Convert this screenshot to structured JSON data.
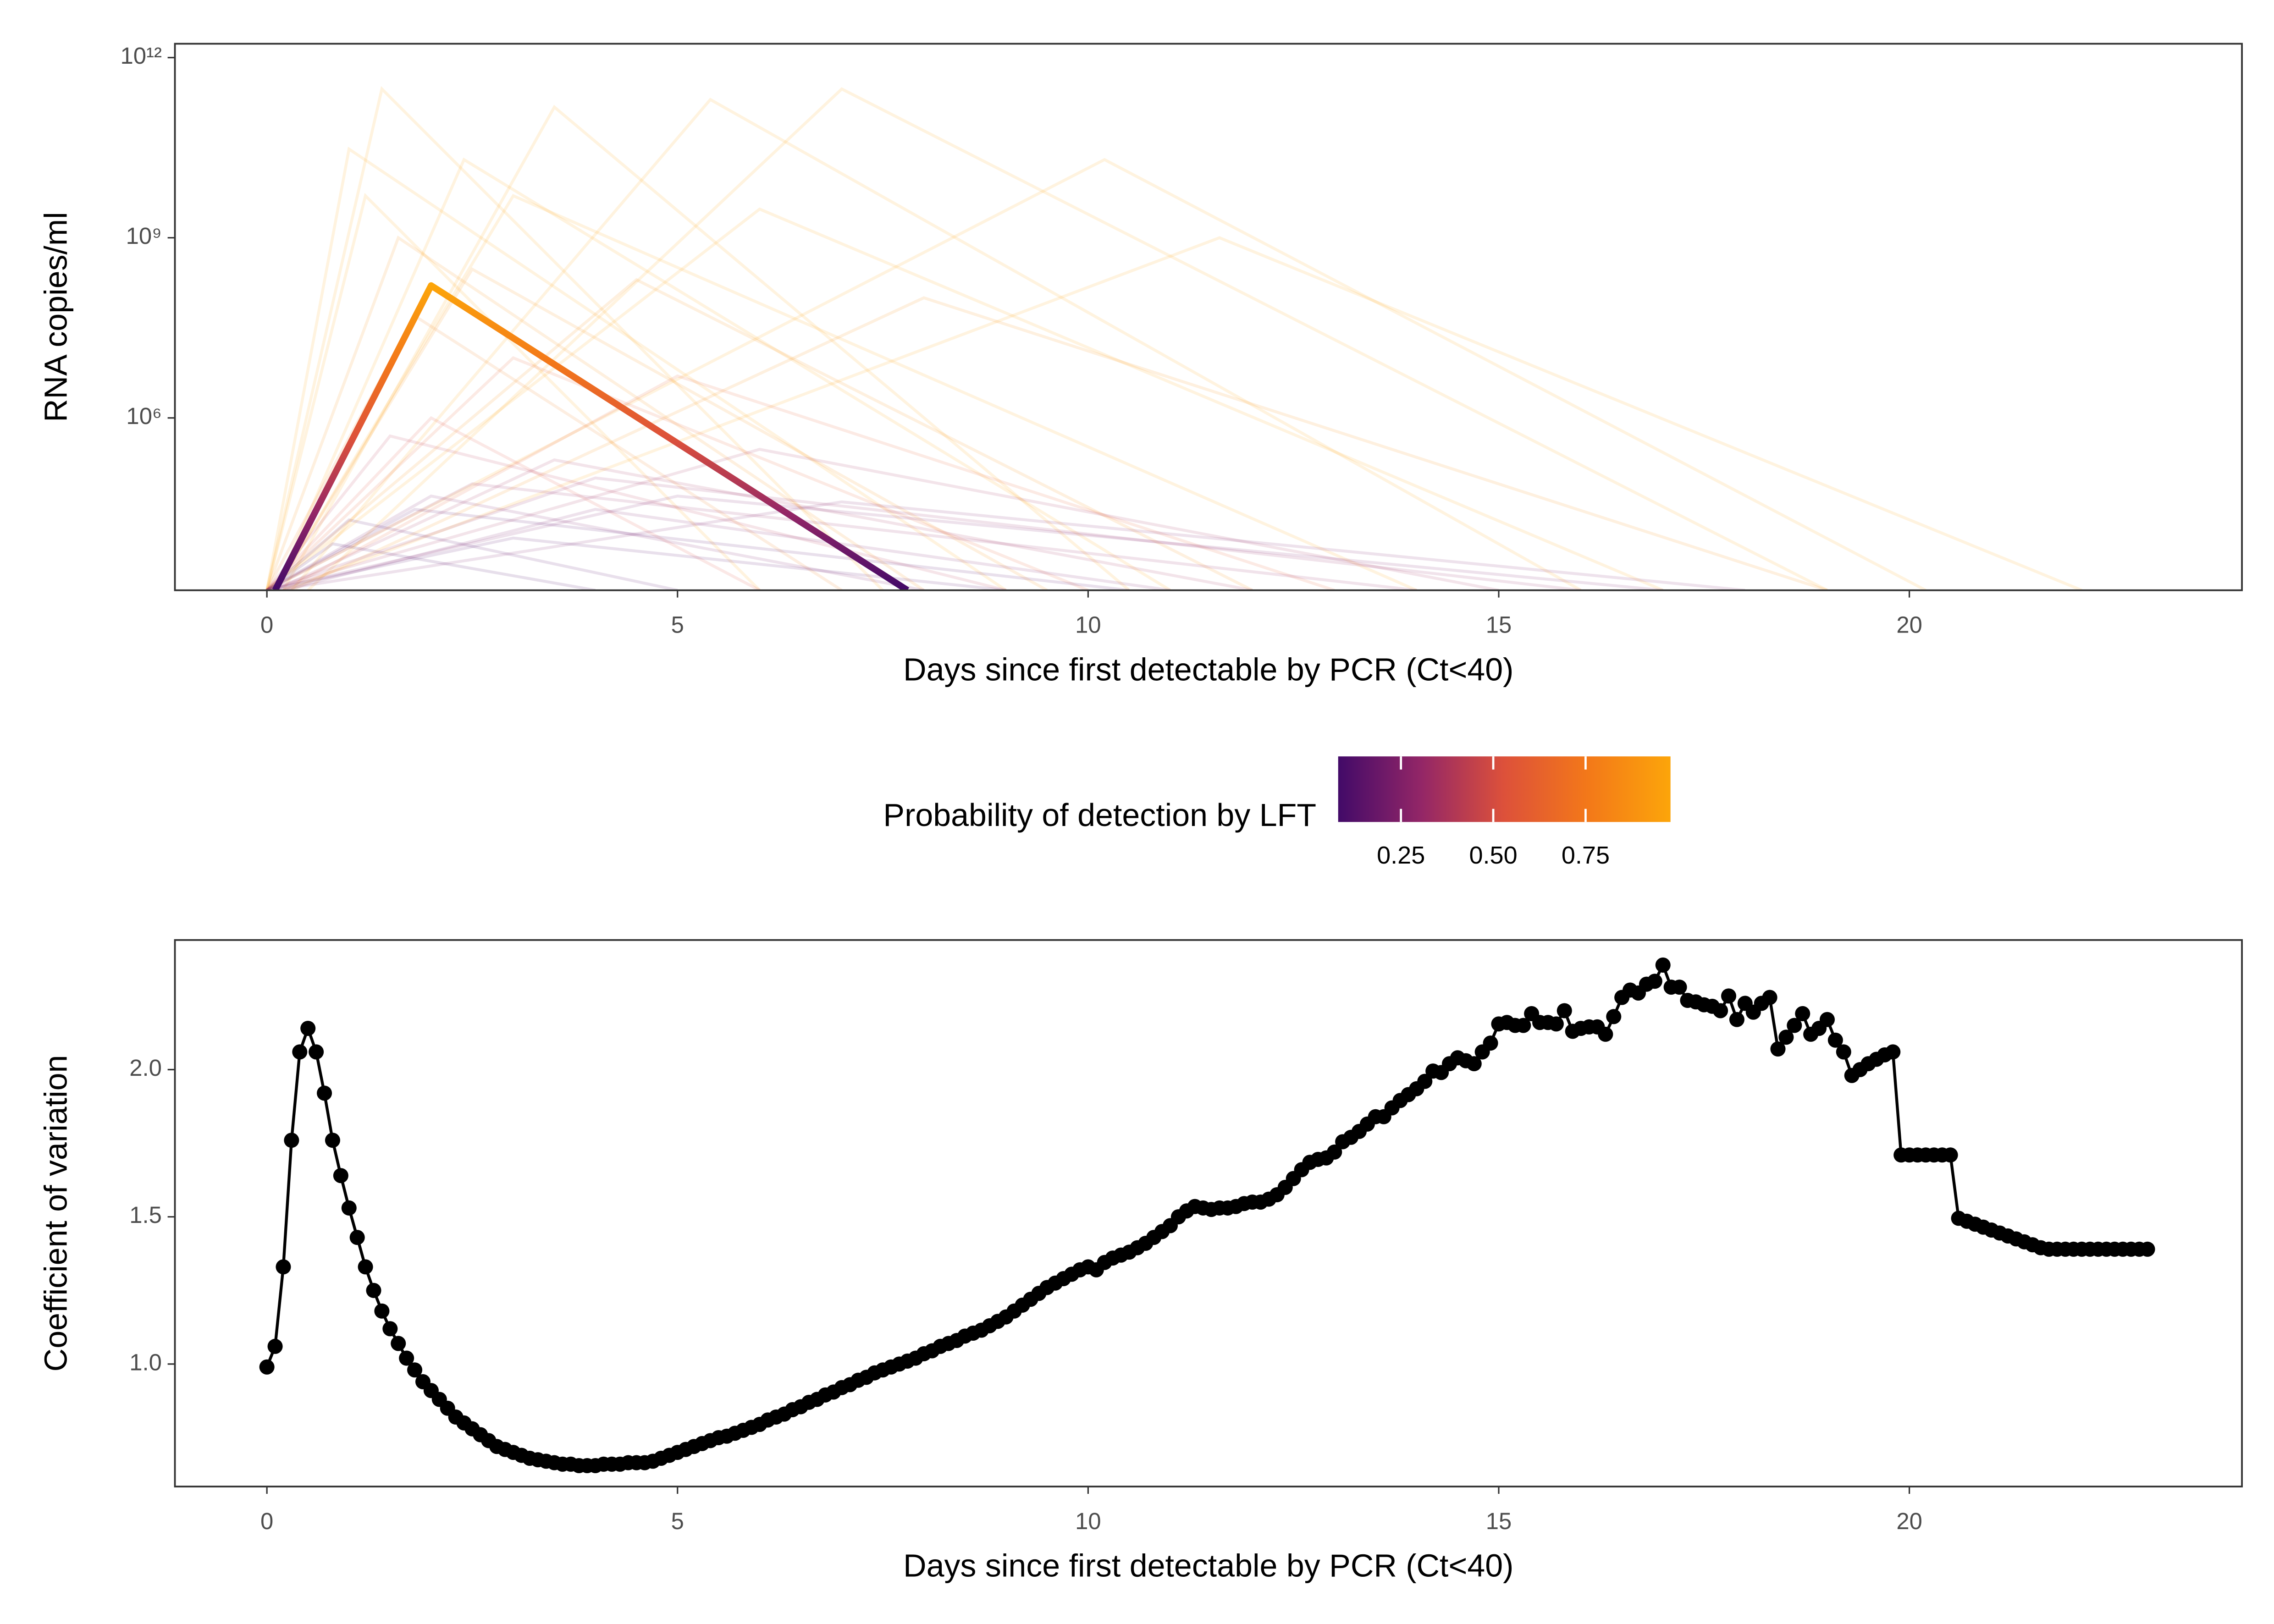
{
  "chart_data": [
    {
      "type": "line",
      "log_y": true,
      "grid": false,
      "xlabel": "Days since first detectable by PCR (Ct<40)",
      "ylabel": "RNA copies/ml",
      "xlim": [
        -1.12,
        24.05
      ],
      "xticks": [
        0,
        5,
        10,
        15,
        20
      ],
      "ylim": [
        1350,
        1700000000000
      ],
      "yticks": [
        {
          "value": 1000000,
          "label": "10⁶"
        },
        {
          "value": 1000000000,
          "label": "10⁹"
        },
        {
          "value": 1000000000000,
          "label": "10¹²"
        }
      ],
      "line_opacity": 0.13,
      "series": [
        {
          "x": [
            0,
            1.4,
            7.5
          ],
          "values": [
            1350,
            300000000000,
            1350
          ],
          "color": "#fca50a"
        },
        {
          "x": [
            0.2,
            3.5,
            10.5
          ],
          "values": [
            1350,
            150000000000,
            1350
          ],
          "color": "#fca50a"
        },
        {
          "x": [
            0.3,
            5.4,
            16
          ],
          "values": [
            1350,
            200000000000,
            1350
          ],
          "color": "#fca50a"
        },
        {
          "x": [
            0.5,
            7.0,
            19
          ],
          "values": [
            1350,
            300000000000,
            1350
          ],
          "color": "#fca50a"
        },
        {
          "x": [
            0,
            1.0,
            9
          ],
          "values": [
            1350,
            30000000000,
            1350
          ],
          "color": "#fca50a"
        },
        {
          "x": [
            0.1,
            2.4,
            11
          ],
          "values": [
            1350,
            20000000000,
            1350
          ],
          "color": "#fca50a"
        },
        {
          "x": [
            0,
            10.2,
            20.2
          ],
          "values": [
            1350,
            20000000000,
            1350
          ],
          "color": "#fca50a"
        },
        {
          "x": [
            0.2,
            11.6,
            22.1
          ],
          "values": [
            1350,
            1000000000,
            1350
          ],
          "color": "#fca50a"
        },
        {
          "x": [
            0,
            1.2,
            6
          ],
          "values": [
            1350,
            5000000000,
            1350
          ],
          "color": "#fca50a"
        },
        {
          "x": [
            0.1,
            3,
            14
          ],
          "values": [
            1350,
            5000000000,
            1350
          ],
          "color": "#fca50a"
        },
        {
          "x": [
            0,
            6,
            17
          ],
          "values": [
            1350,
            3000000000,
            1350
          ],
          "color": "#fca50a"
        },
        {
          "x": [
            0,
            1.6,
            8
          ],
          "values": [
            1350,
            1000000000,
            1350
          ],
          "color": "#f98e09"
        },
        {
          "x": [
            0.1,
            2.5,
            9.5
          ],
          "values": [
            1350,
            300000000,
            1350
          ],
          "color": "#f98e09"
        },
        {
          "x": [
            0,
            4.5,
            12
          ],
          "values": [
            1350,
            200000000,
            1350
          ],
          "color": "#f98e09"
        },
        {
          "x": [
            0.3,
            8,
            19
          ],
          "values": [
            1350,
            100000000,
            1350
          ],
          "color": "#f98e09"
        },
        {
          "x": [
            0,
            1.8,
            7
          ],
          "values": [
            1350,
            50000000,
            1350
          ],
          "color": "#f37819"
        },
        {
          "x": [
            0,
            3,
            10
          ],
          "values": [
            1350,
            10000000,
            1350
          ],
          "color": "#e55c30"
        },
        {
          "x": [
            0.2,
            5,
            13
          ],
          "values": [
            1350,
            5000000,
            1350
          ],
          "color": "#e55c30"
        },
        {
          "x": [
            0,
            2,
            6
          ],
          "values": [
            1350,
            1000000,
            1350
          ],
          "color": "#dd513a"
        },
        {
          "x": [
            0,
            1.5,
            9
          ],
          "values": [
            1350,
            500000,
            1350
          ],
          "color": "#bc3754"
        },
        {
          "x": [
            0.1,
            3.5,
            12
          ],
          "values": [
            1350,
            200000,
            1350
          ],
          "color": "#a52c60"
        },
        {
          "x": [
            0,
            6,
            15
          ],
          "values": [
            1350,
            300000,
            1350
          ],
          "color": "#a52c60"
        },
        {
          "x": [
            0,
            2,
            8
          ],
          "values": [
            1350,
            50000,
            1350
          ],
          "color": "#781c6d"
        },
        {
          "x": [
            0.2,
            4,
            11
          ],
          "values": [
            1350,
            30000,
            1350
          ],
          "color": "#781c6d"
        },
        {
          "x": [
            0,
            1,
            5
          ],
          "values": [
            1350,
            20000,
            1350
          ],
          "color": "#57106e"
        },
        {
          "x": [
            0,
            3,
            9
          ],
          "values": [
            1350,
            10000,
            1350
          ],
          "color": "#57106e"
        },
        {
          "x": [
            0,
            5,
            17
          ],
          "values": [
            1350,
            50000,
            1350
          ],
          "color": "#781c6d"
        },
        {
          "x": [
            0.1,
            7,
            18
          ],
          "values": [
            1350,
            40000,
            1350
          ],
          "color": "#781c6d"
        },
        {
          "x": [
            0,
            2.5,
            14
          ],
          "values": [
            1350,
            80000,
            1350
          ],
          "color": "#932667"
        },
        {
          "x": [
            0,
            0.8,
            4
          ],
          "values": [
            1350,
            8000,
            1350
          ],
          "color": "#420a68"
        },
        {
          "x": [
            0,
            1.8,
            10.5
          ],
          "values": [
            1350,
            30000,
            1350
          ],
          "color": "#57106e"
        },
        {
          "x": [
            0,
            4,
            16
          ],
          "values": [
            1350,
            100000,
            1350
          ],
          "color": "#932667"
        }
      ],
      "highlight": {
        "x": [
          0.1,
          2.0,
          7.8
        ],
        "values": [
          1350,
          160000000,
          1350
        ]
      },
      "colorbar": {
        "title": "Probability of detection by LFT",
        "range": [
          0.08,
          0.98
        ],
        "ticks": [
          0.25,
          {
            "value": 0.5,
            "label": "0.50"
          },
          0.75
        ],
        "colors": [
          "#420a68",
          "#932667",
          "#dd513a",
          "#f37819",
          "#fca50a"
        ]
      }
    },
    {
      "type": "line",
      "markers": true,
      "grid": false,
      "color": "#000000",
      "xlabel": "Days since first detectable by PCR (Ct<40)",
      "ylabel": "Coefficient of variation",
      "xlim": [
        -1.12,
        24.05
      ],
      "xticks": [
        0,
        5,
        10,
        15,
        20
      ],
      "ylim": [
        0.584,
        2.44
      ],
      "yticks": [
        {
          "value": 1,
          "label": "1.0"
        },
        1.5,
        {
          "value": 2,
          "label": "2.0"
        }
      ],
      "x": [
        0,
        0.1,
        0.2,
        0.3,
        0.4,
        0.5,
        0.6,
        0.7,
        0.8,
        0.9,
        1,
        1.1,
        1.2,
        1.3,
        1.4,
        1.5,
        1.6,
        1.7,
        1.8,
        1.9,
        2,
        2.1,
        2.2,
        2.3,
        2.4,
        2.5,
        2.6,
        2.7,
        2.8,
        2.9,
        3,
        3.1,
        3.2,
        3.3,
        3.4,
        3.5,
        3.6,
        3.7,
        3.8,
        3.9,
        4,
        4.1,
        4.2,
        4.3,
        4.4,
        4.5,
        4.6,
        4.7,
        4.8,
        4.9,
        5,
        5.1,
        5.2,
        5.3,
        5.4,
        5.5,
        5.6,
        5.7,
        5.8,
        5.9,
        6,
        6.1,
        6.2,
        6.3,
        6.4,
        6.5,
        6.6,
        6.7,
        6.8,
        6.9,
        7,
        7.1,
        7.2,
        7.3,
        7.4,
        7.5,
        7.6,
        7.7,
        7.8,
        7.9,
        8,
        8.1,
        8.2,
        8.3,
        8.4,
        8.5,
        8.6,
        8.7,
        8.8,
        8.9,
        9,
        9.1,
        9.2,
        9.3,
        9.4,
        9.5,
        9.6,
        9.7,
        9.8,
        9.9,
        10,
        10.1,
        10.2,
        10.3,
        10.4,
        10.5,
        10.6,
        10.7,
        10.8,
        10.9,
        11,
        11.1,
        11.2,
        11.3,
        11.4,
        11.5,
        11.6,
        11.7,
        11.8,
        11.9,
        12,
        12.1,
        12.2,
        12.3,
        12.4,
        12.5,
        12.6,
        12.7,
        12.8,
        12.9,
        13,
        13.1,
        13.2,
        13.3,
        13.4,
        13.5,
        13.6,
        13.7,
        13.8,
        13.9,
        14,
        14.1,
        14.2,
        14.3,
        14.4,
        14.5,
        14.6,
        14.7,
        14.8,
        14.9,
        15,
        15.1,
        15.2,
        15.3,
        15.4,
        15.5,
        15.6,
        15.7,
        15.8,
        15.9,
        16,
        16.1,
        16.2,
        16.3,
        16.4,
        16.5,
        16.6,
        16.7,
        16.8,
        16.9,
        17,
        17.1,
        17.2,
        17.3,
        17.4,
        17.5,
        17.6,
        17.7,
        17.8,
        17.9,
        18,
        18.1,
        18.2,
        18.3,
        18.4,
        18.5,
        18.6,
        18.7,
        18.8,
        18.9,
        19,
        19.1,
        19.2,
        19.3,
        19.4,
        19.5,
        19.6,
        19.7,
        19.8,
        19.9,
        20,
        20.1,
        20.2,
        20.3,
        20.4,
        20.5,
        20.6,
        20.7,
        20.8,
        20.9,
        21,
        21.1,
        21.2,
        21.3,
        21.4,
        21.5,
        21.6,
        21.7,
        21.8,
        21.9,
        22,
        22.1,
        22.2,
        22.3,
        22.4,
        22.5,
        22.6,
        22.7,
        22.8,
        22.9
      ],
      "values": [
        0.99,
        1.06,
        1.33,
        1.76,
        2.06,
        2.14,
        2.06,
        1.92,
        1.76,
        1.64,
        1.53,
        1.43,
        1.33,
        1.25,
        1.18,
        1.12,
        1.07,
        1.02,
        0.98,
        0.94,
        0.91,
        0.88,
        0.85,
        0.82,
        0.8,
        0.78,
        0.76,
        0.74,
        0.72,
        0.71,
        0.7,
        0.69,
        0.68,
        0.675,
        0.67,
        0.665,
        0.66,
        0.66,
        0.655,
        0.655,
        0.655,
        0.66,
        0.66,
        0.66,
        0.665,
        0.665,
        0.665,
        0.67,
        0.68,
        0.69,
        0.7,
        0.71,
        0.72,
        0.73,
        0.74,
        0.75,
        0.755,
        0.765,
        0.775,
        0.785,
        0.795,
        0.81,
        0.82,
        0.83,
        0.845,
        0.855,
        0.87,
        0.88,
        0.895,
        0.905,
        0.92,
        0.93,
        0.945,
        0.955,
        0.97,
        0.98,
        0.99,
        1,
        1.01,
        1.02,
        1.035,
        1.045,
        1.06,
        1.07,
        1.08,
        1.095,
        1.105,
        1.115,
        1.13,
        1.145,
        1.16,
        1.18,
        1.2,
        1.22,
        1.24,
        1.26,
        1.275,
        1.29,
        1.305,
        1.32,
        1.33,
        1.32,
        1.345,
        1.36,
        1.37,
        1.38,
        1.395,
        1.41,
        1.43,
        1.45,
        1.47,
        1.5,
        1.52,
        1.535,
        1.53,
        1.525,
        1.53,
        1.53,
        1.535,
        1.545,
        1.55,
        1.55,
        1.56,
        1.575,
        1.6,
        1.63,
        1.66,
        1.685,
        1.695,
        1.7,
        1.72,
        1.755,
        1.77,
        1.79,
        1.815,
        1.84,
        1.84,
        1.87,
        1.895,
        1.915,
        1.935,
        1.96,
        1.995,
        1.99,
        2.02,
        2.04,
        2.03,
        2.02,
        2.06,
        2.09,
        2.155,
        2.16,
        2.15,
        2.15,
        2.19,
        2.16,
        2.16,
        2.155,
        2.2,
        2.13,
        2.14,
        2.145,
        2.145,
        2.12,
        2.18,
        2.245,
        2.27,
        2.26,
        2.29,
        2.3,
        2.355,
        2.28,
        2.28,
        2.235,
        2.23,
        2.22,
        2.215,
        2.2,
        2.25,
        2.17,
        2.225,
        2.195,
        2.225,
        2.245,
        2.07,
        2.11,
        2.15,
        2.19,
        2.12,
        2.14,
        2.17,
        2.1,
        2.06,
        1.98,
        2,
        2.02,
        2.035,
        2.05,
        2.06,
        1.71,
        1.71,
        1.71,
        1.71,
        1.71,
        1.71,
        1.71,
        1.495,
        1.485,
        1.475,
        1.465,
        1.455,
        1.445,
        1.435,
        1.425,
        1.415,
        1.405,
        1.395,
        1.39,
        1.39,
        1.39,
        1.39,
        1.39,
        1.39,
        1.39,
        1.39,
        1.39,
        1.39,
        1.39,
        1.39,
        1.39
      ]
    }
  ]
}
